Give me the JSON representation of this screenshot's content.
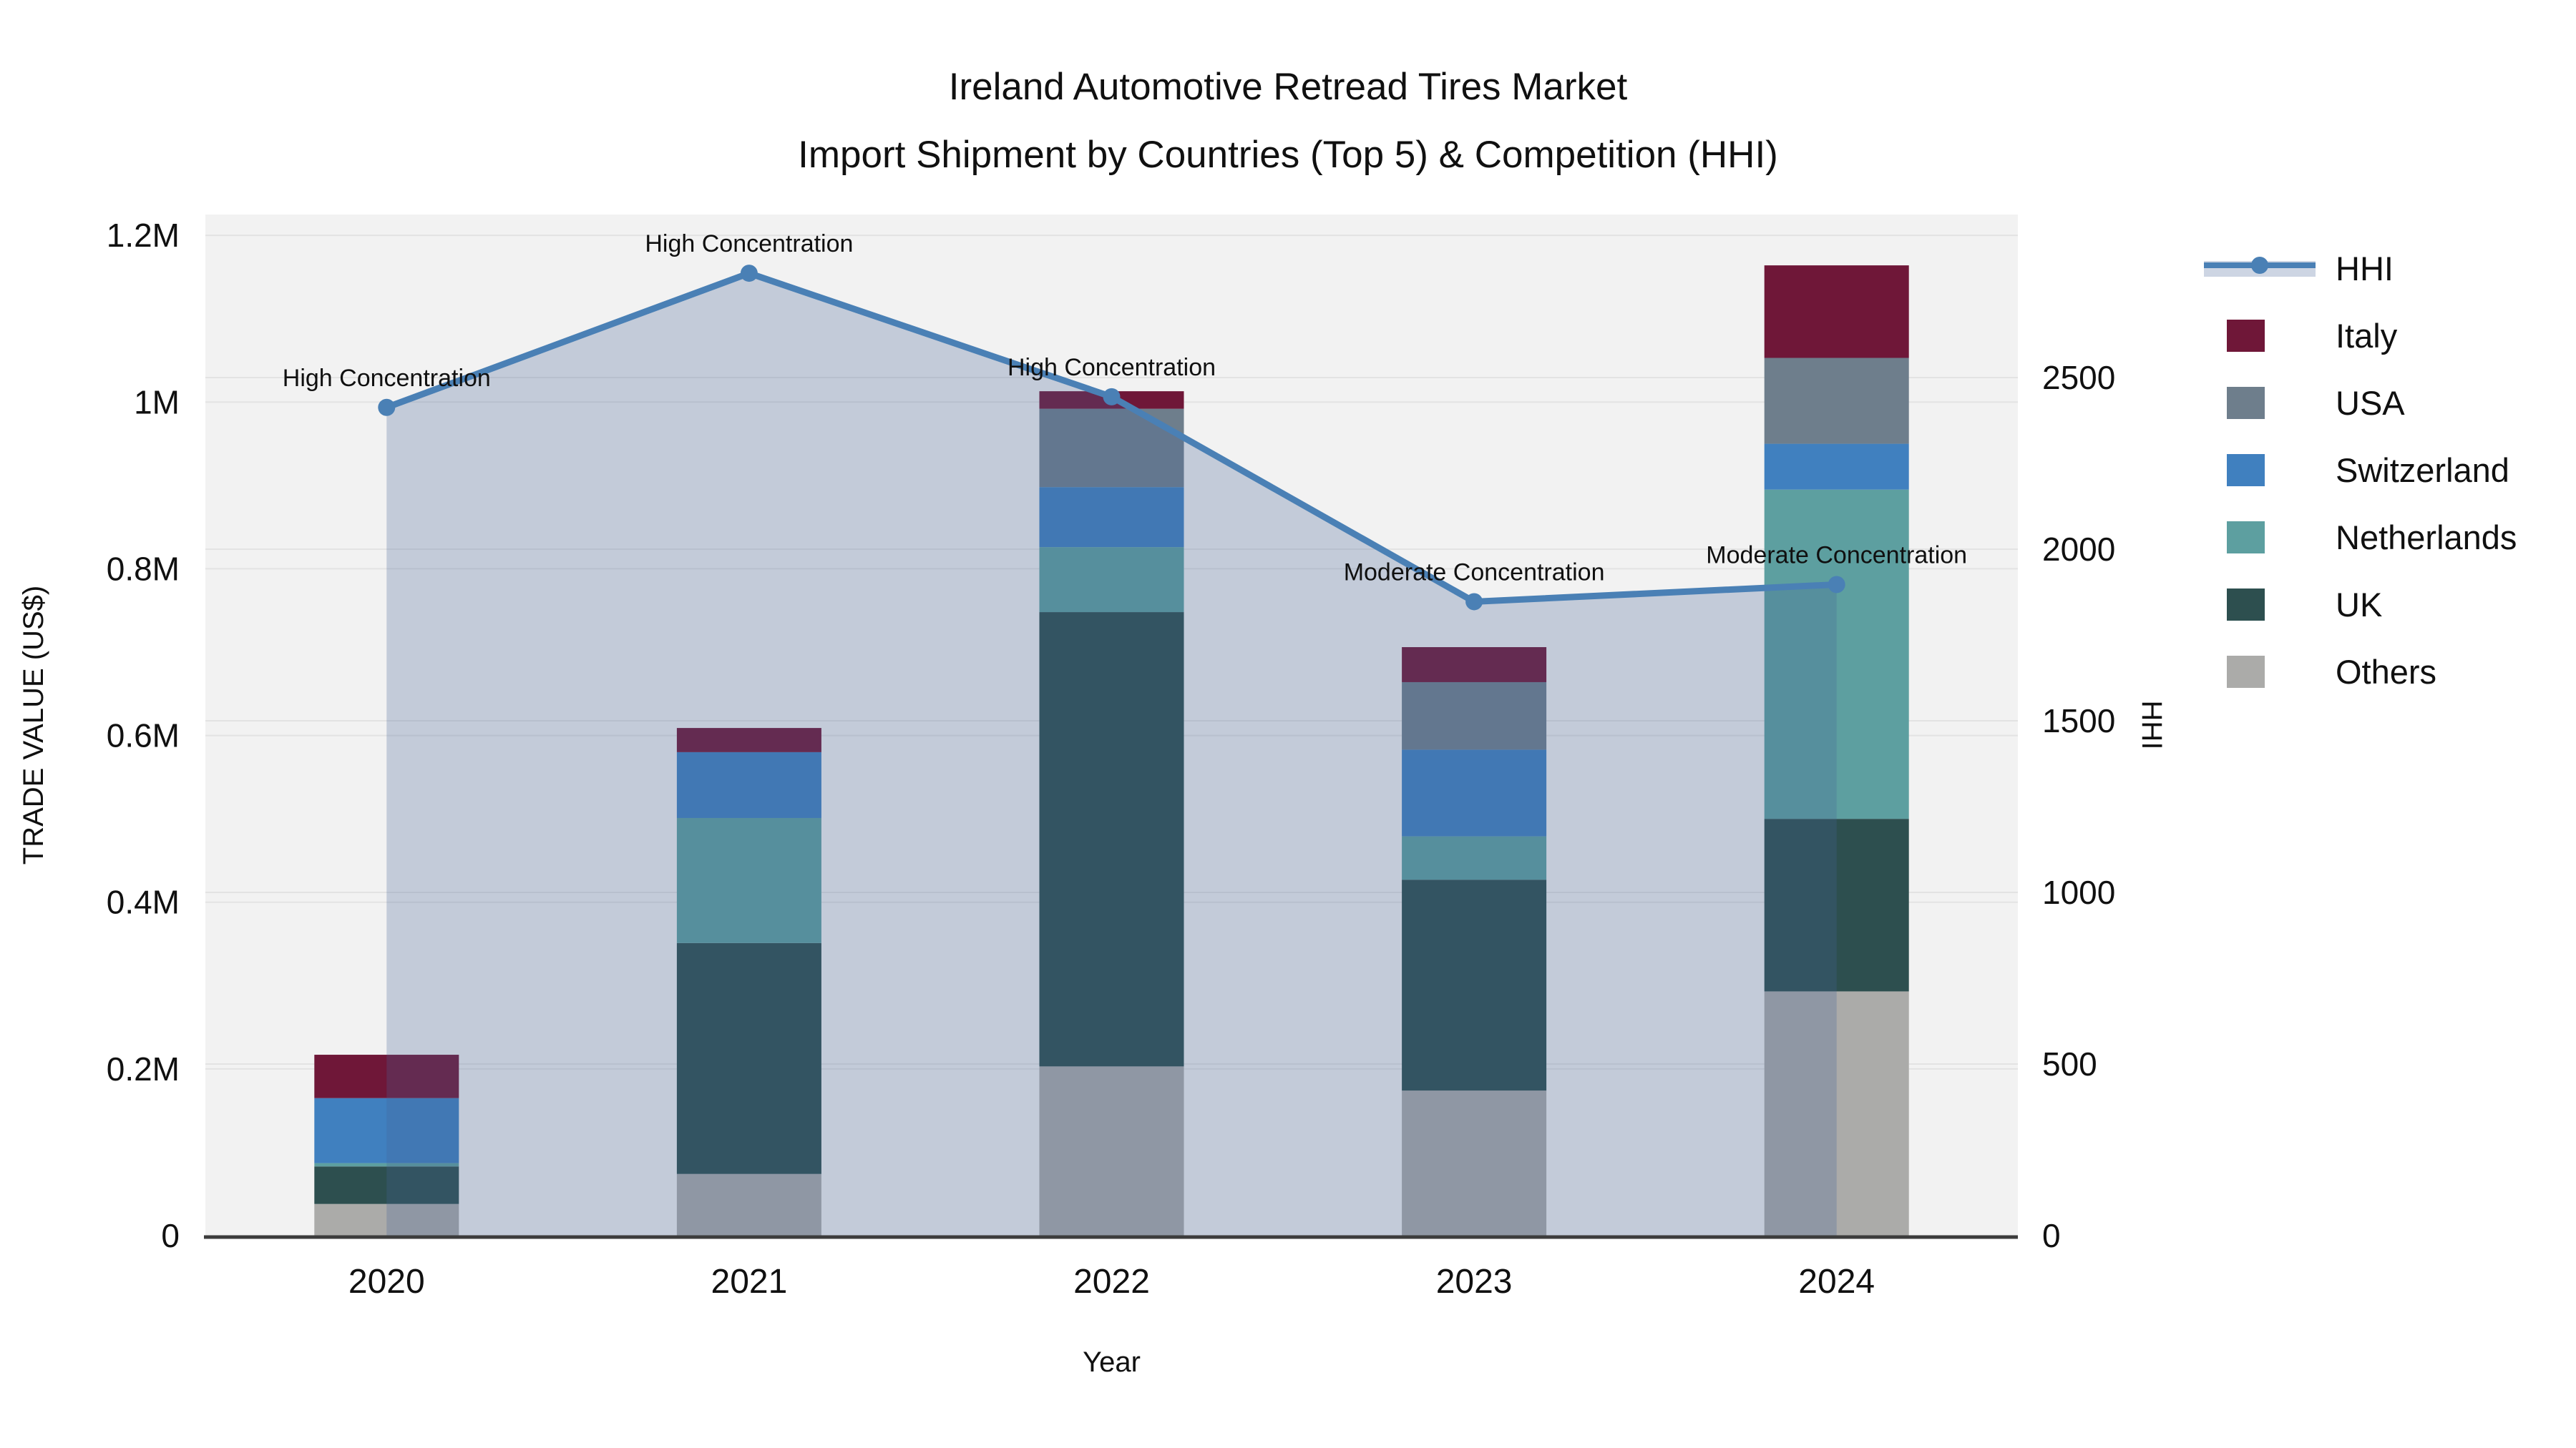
{
  "title": {
    "line1": "Ireland Automotive Retread Tires Market",
    "line2": "Import Shipment by Countries (Top 5) & Competition (HHI)"
  },
  "axes": {
    "x": {
      "title": "Year",
      "ticks": [
        "2020",
        "2021",
        "2022",
        "2023",
        "2024"
      ]
    },
    "y_left": {
      "title": "TRADE VALUE (US$)",
      "ticks": [
        "0",
        "0.2M",
        "0.4M",
        "0.6M",
        "0.8M",
        "1M",
        "1.2M"
      ],
      "tick_values": [
        0,
        200000,
        400000,
        600000,
        800000,
        1000000,
        1200000
      ]
    },
    "y_right": {
      "title": "HHI",
      "ticks": [
        "0",
        "500",
        "1000",
        "1500",
        "2000",
        "2500"
      ],
      "tick_values": [
        0,
        500,
        1000,
        1500,
        2000,
        2500
      ]
    }
  },
  "legend": {
    "items": [
      {
        "label": "HHI",
        "type": "line",
        "color": "#4a80b5"
      },
      {
        "label": "Italy",
        "type": "swatch",
        "color": "#6f1738"
      },
      {
        "label": "USA",
        "type": "swatch",
        "color": "#6e7e8c"
      },
      {
        "label": "Switzerland",
        "type": "swatch",
        "color": "#4080bf"
      },
      {
        "label": "Netherlands",
        "type": "swatch",
        "color": "#5d9fa0"
      },
      {
        "label": "UK",
        "type": "swatch",
        "color": "#2d4f4f"
      },
      {
        "label": "Others",
        "type": "swatch",
        "color": "#ababa9"
      }
    ]
  },
  "chart_data": {
    "type": "bar+line",
    "title": "Ireland Automotive Retread Tires Market — Import Shipment by Countries (Top 5) & Competition (HHI)",
    "categories": [
      "2020",
      "2021",
      "2022",
      "2023",
      "2024"
    ],
    "xlabel": "Year",
    "ylabel_left": "TRADE VALUE (US$)",
    "ylabel_right": "HHI",
    "ylim_left": [
      0,
      1225000
    ],
    "ylim_right": [
      0,
      2975
    ],
    "grid": "on",
    "legend_position": "right",
    "bar_stack_order_bottom_to_top": [
      "Others",
      "UK",
      "Netherlands",
      "Switzerland",
      "USA",
      "Italy"
    ],
    "series": [
      {
        "name": "Others",
        "color": "#ababa9",
        "values": [
          38000,
          74000,
          203000,
          174000,
          293000
        ]
      },
      {
        "name": "UK",
        "color": "#2d4f4f",
        "values": [
          45000,
          277000,
          545000,
          253000,
          207000
        ]
      },
      {
        "name": "Netherlands",
        "color": "#5d9fa0",
        "values": [
          4000,
          150000,
          78000,
          52000,
          395000
        ]
      },
      {
        "name": "Switzerland",
        "color": "#4080bf",
        "values": [
          78000,
          79000,
          72000,
          104000,
          55000
        ]
      },
      {
        "name": "USA",
        "color": "#6e7e8c",
        "values": [
          0,
          0,
          94000,
          81000,
          103000
        ]
      },
      {
        "name": "Italy",
        "color": "#6f1738",
        "values": [
          52000,
          29000,
          21000,
          42000,
          111000
        ]
      }
    ],
    "line": {
      "name": "HHI",
      "color": "#4a80b5",
      "area_fill": "rgba(70,100,150,0.27)",
      "values": [
        2413,
        2804,
        2444,
        1847,
        1897
      ]
    },
    "annotations": [
      {
        "category": "2020",
        "text": "High Concentration"
      },
      {
        "category": "2021",
        "text": "High Concentration"
      },
      {
        "category": "2022",
        "text": "High Concentration"
      },
      {
        "category": "2023",
        "text": "Moderate Concentration"
      },
      {
        "category": "2024",
        "text": "Moderate Concentration"
      }
    ]
  },
  "colors": {
    "figure_bg": "#ffffff",
    "plot_bg": "#f2f2f2",
    "gridline": "#e3e3e3",
    "axis_line": "#3c3c3c",
    "text": "#101010",
    "hhi_line": "#4a80b5"
  }
}
